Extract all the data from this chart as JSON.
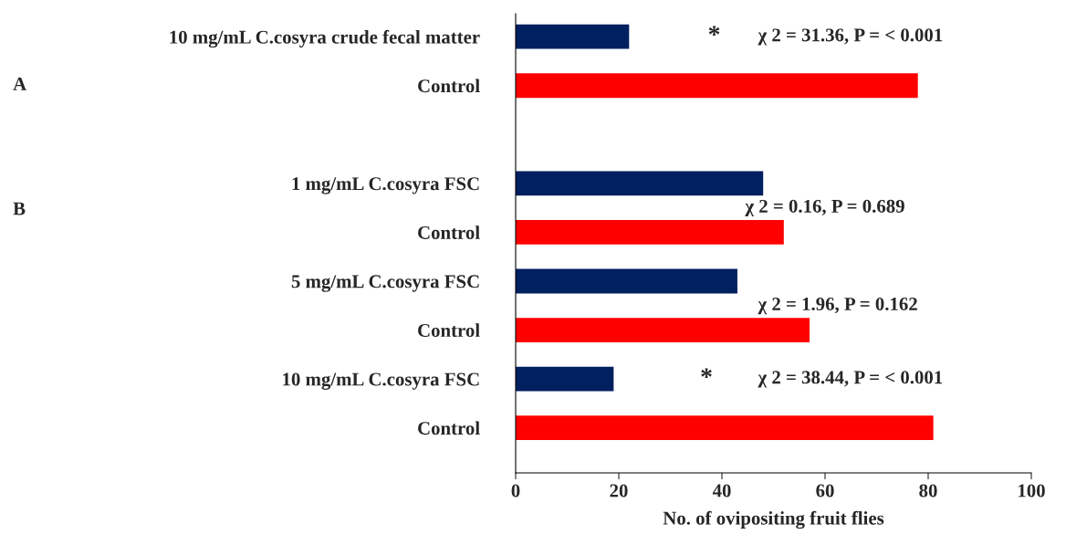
{
  "chart_data": {
    "type": "bar",
    "orientation": "horizontal",
    "xlabel": "No. of ovipositing fruit flies",
    "categories": [
      "10 mg/mL C.cosyra crude fecal matter",
      "Control",
      null,
      "1 mg/mL C.cosyra FSC",
      "Control",
      "5 mg/mL C.cosyra FSC",
      "Control",
      "10 mg/mL C.cosyra FSC",
      "Control"
    ],
    "values": [
      22,
      78,
      null,
      48,
      52,
      43,
      57,
      19,
      81
    ],
    "colors": [
      "#002060",
      "#ff0000",
      "#ffffff",
      "#002060",
      "#ff0000",
      "#002060",
      "#ff0000",
      "#002060",
      "#ff0000"
    ],
    "xlim": [
      0,
      100
    ],
    "xticks": [
      0,
      20,
      40,
      60,
      80,
      100
    ],
    "grid": false,
    "legend": false,
    "annotations": [
      "*",
      "χ 2 = 31.36, P = < 0.001",
      "A",
      "B",
      "χ 2 = 0.16, P = 0.689",
      "χ 2 = 1.96, P = 0.162",
      "*",
      "χ 2 = 38.44, P = < 0.001"
    ]
  }
}
